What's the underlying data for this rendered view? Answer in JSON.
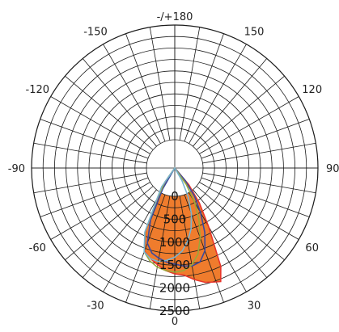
{
  "chart_data": {
    "type": "polar",
    "angle_tick_labels": [
      "0",
      "30",
      "60",
      "90",
      "120",
      "150",
      "-/+180",
      "-150",
      "-120",
      "-90",
      "-60",
      "-30"
    ],
    "angle_ticks_deg": [
      0,
      30,
      60,
      90,
      120,
      150,
      180,
      -150,
      -120,
      -90,
      -60,
      -30
    ],
    "radial_tick_labels": [
      "0",
      "500",
      "1000",
      "1500",
      "2000",
      "2500"
    ],
    "radial_ticks": [
      0,
      500,
      1000,
      1500,
      2000,
      2500
    ],
    "rlim": [
      0,
      2500
    ],
    "grid": true,
    "series": [
      {
        "color": "#ee7522",
        "stroke": "#e8352a",
        "filled": true,
        "theta_deg": [
          -35,
          -30,
          -25,
          -20,
          -15,
          -10,
          -5,
          0,
          5,
          10,
          15,
          20,
          22,
          25,
          30,
          35,
          40
        ],
        "r": [
          200,
          500,
          1200,
          1550,
          1640,
          1720,
          1800,
          1850,
          1880,
          1980,
          2070,
          2120,
          2140,
          1900,
          1180,
          750,
          380
        ]
      },
      {
        "color": "#3a4a9e",
        "filled": false,
        "theta_deg": [
          -30,
          -25,
          -20,
          -15,
          -10,
          -5,
          0,
          5,
          10,
          15,
          20,
          25,
          30,
          35,
          40
        ],
        "r": [
          420,
          1000,
          1400,
          1540,
          1600,
          1650,
          1680,
          1720,
          1740,
          1700,
          1540,
          1240,
          900,
          600,
          280
        ]
      },
      {
        "color": "#9aa83a",
        "filled": false,
        "theta_deg": [
          -35,
          -30,
          -25,
          -20,
          -15,
          -10,
          -5,
          0,
          5,
          10,
          15,
          20,
          25,
          30,
          35
        ],
        "r": [
          300,
          600,
          1220,
          1560,
          1680,
          1760,
          1800,
          1820,
          1800,
          1720,
          1560,
          1300,
          1000,
          700,
          350
        ]
      },
      {
        "color": "#78b4d0",
        "filled": false,
        "theta_deg": [
          -35,
          -30,
          -25,
          -20,
          -15,
          -10,
          -5,
          0,
          5,
          10,
          15,
          20,
          25,
          30
        ],
        "r": [
          400,
          620,
          1240,
          1560,
          1640,
          1660,
          1620,
          1560,
          1460,
          1300,
          1100,
          850,
          550,
          250
        ]
      }
    ]
  }
}
